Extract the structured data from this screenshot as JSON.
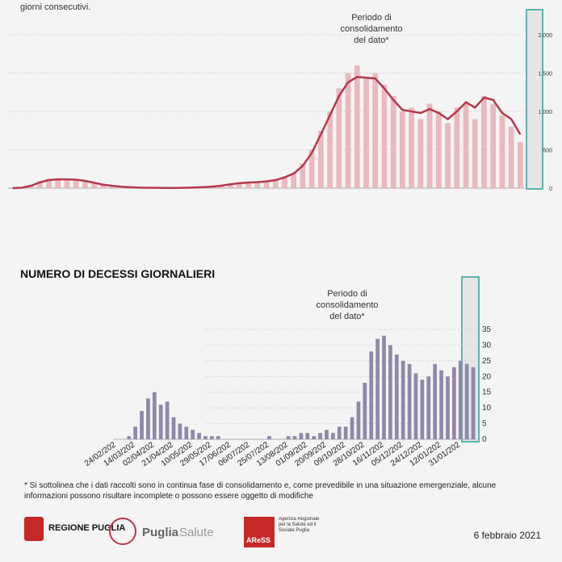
{
  "header": {
    "text": "giorni consecutivi."
  },
  "chart_data": [
    {
      "type": "bar",
      "annotation": "Periodo di consolidamento del dato*",
      "categories": [
        null,
        null,
        null,
        null,
        null,
        null,
        null,
        null,
        null,
        null,
        null,
        null,
        null,
        null,
        null,
        null,
        null,
        null,
        null,
        null,
        null,
        null,
        null,
        null,
        null,
        null,
        null,
        null,
        null,
        null,
        null,
        null,
        null,
        null,
        null,
        null,
        null,
        null,
        null,
        null,
        null,
        null,
        null,
        null,
        null,
        null,
        null,
        null,
        null,
        null,
        null,
        null,
        null,
        null,
        null,
        null,
        null
      ],
      "series": [
        {
          "color": "#e9b9bd",
          "values": [
            0,
            10,
            40,
            90,
            120,
            130,
            110,
            120,
            90,
            60,
            40,
            25,
            15,
            10,
            5,
            5,
            3,
            2,
            3,
            5,
            10,
            15,
            20,
            40,
            60,
            80,
            70,
            80,
            90,
            110,
            150,
            200,
            320,
            500,
            750,
            1000,
            1300,
            1500,
            1600,
            1450,
            1500,
            1350,
            1200,
            1000,
            1050,
            900,
            1100,
            1000,
            850,
            1050,
            1100,
            900,
            1200,
            1100,
            950,
            800,
            600
          ]
        },
        {
          "type": "line",
          "color": "#b5384b",
          "values": [
            0,
            5,
            30,
            75,
            105,
            115,
            115,
            110,
            95,
            70,
            45,
            30,
            18,
            12,
            7,
            5,
            4,
            3,
            3,
            5,
            8,
            13,
            20,
            32,
            50,
            65,
            72,
            78,
            88,
            105,
            140,
            190,
            290,
            460,
            700,
            950,
            1200,
            1380,
            1450,
            1440,
            1430,
            1300,
            1150,
            1020,
            1000,
            980,
            1030,
            980,
            900,
            1000,
            1120,
            1050,
            1180,
            1150,
            980,
            900,
            700
          ]
        }
      ],
      "ylim": [
        0,
        2000
      ],
      "yticks": [
        0,
        500,
        {
          "value": 1000,
          "label": "1.000"
        },
        {
          "value": 1500,
          "label": "1.500"
        },
        {
          "value": 2000,
          "label": "2.000"
        }
      ],
      "grid": true
    },
    {
      "type": "bar",
      "title": "NUMERO DI DECESSI GIORNALIERI",
      "annotation": "Periodo di consolidamento del dato*",
      "categories": [
        "24/02/202",
        null,
        null,
        "14/03/202",
        null,
        null,
        "02/04/202",
        null,
        null,
        "21/04/202",
        null,
        null,
        "10/05/202",
        null,
        null,
        "29/05/202",
        null,
        null,
        "17/06/202",
        null,
        null,
        "06/07/202",
        null,
        null,
        "25/07/202",
        null,
        null,
        "13/08/202",
        null,
        null,
        "01/09/202",
        null,
        null,
        "20/09/202",
        null,
        null,
        "09/10/202",
        null,
        null,
        "28/10/202",
        null,
        null,
        "16/11/202",
        null,
        null,
        "05/12/202",
        null,
        null,
        "24/12/202",
        null,
        null,
        "12/01/202",
        null,
        null,
        "31/01/202",
        null,
        null
      ],
      "series": [
        {
          "color": "#8f88a9",
          "values": [
            0,
            0,
            1,
            4,
            9,
            13,
            15,
            11,
            12,
            7,
            5,
            4,
            3,
            2,
            1,
            1,
            1,
            0,
            0,
            0,
            0,
            0,
            0,
            0,
            1,
            0,
            0,
            1,
            1,
            2,
            2,
            1,
            2,
            3,
            2,
            4,
            4,
            7,
            12,
            18,
            28,
            32,
            33,
            30,
            27,
            25,
            24,
            21,
            19,
            20,
            24,
            22,
            20,
            23,
            25,
            24,
            23
          ]
        }
      ],
      "ylim": [
        0,
        35
      ],
      "yticks": [
        0,
        5,
        10,
        15,
        20,
        25,
        30,
        35
      ],
      "grid": true
    }
  ],
  "footer": {
    "note": "* Si sottolinea che i dati raccolti sono in continua fase di consolidamento e, come prevedibile in una situazione emergenziale, alcune informazioni possono risultare incomplete o possono essere oggetto di modifiche",
    "logo1": "REGIONE PUGLIA",
    "logo2a": "Puglia",
    "logo2b": "Salute",
    "logo3": "AReSS",
    "logo3sub": "Agenzia Regionale per la Salute ed il Sociale Puglia",
    "date": "6 febbraio 2021"
  }
}
